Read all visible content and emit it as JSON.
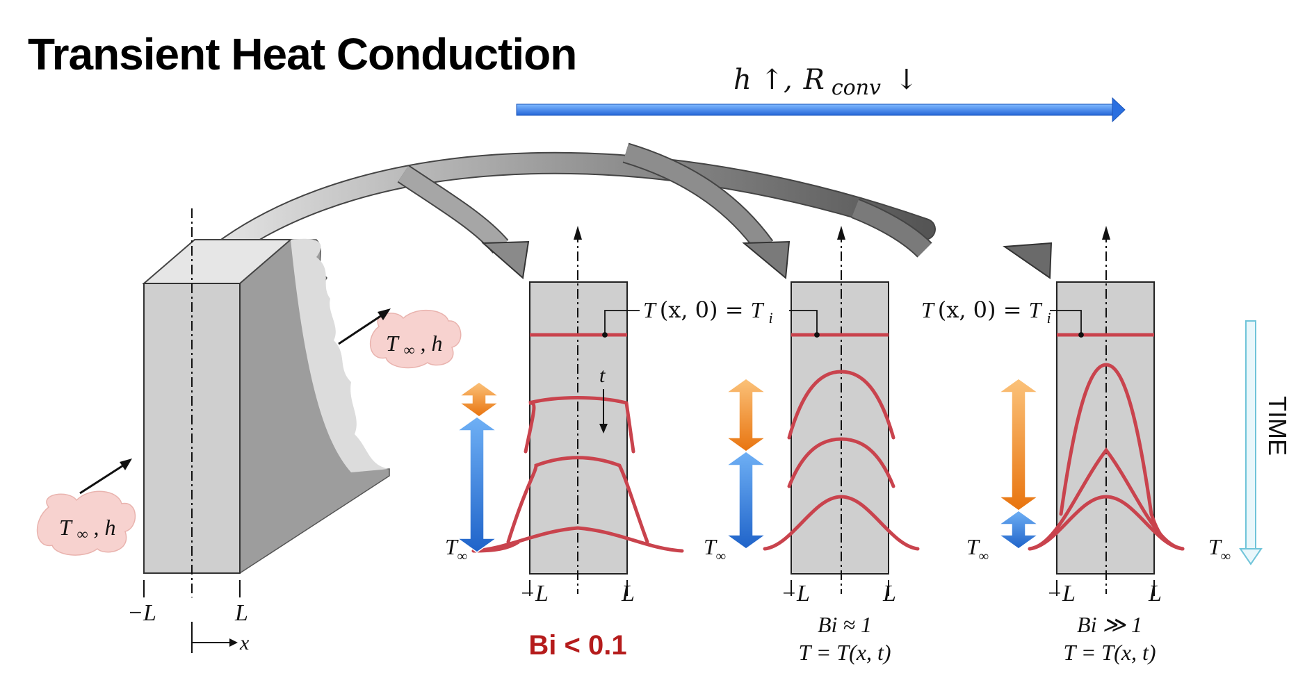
{
  "title": "Transient Heat Conduction",
  "top_arrow": {
    "h_part": "h ↑,",
    "r_main": "R",
    "r_sub": "conv",
    "r_arrow": "↓"
  },
  "slab": {
    "fluid_left": {
      "t": "T",
      "sub": "∞",
      "h": ", h"
    },
    "fluid_right": {
      "t": "T",
      "sub": "∞",
      "h": ", h"
    },
    "minus_l": "−L",
    "plus_l": "L",
    "x_axis": "x"
  },
  "initial_condition": {
    "t": "T",
    "mid": "(x, 0) = ",
    "ti": "T",
    "sub": "i"
  },
  "t_inf": {
    "t": "T",
    "sub": "∞"
  },
  "time_symbol": "t",
  "panels": [
    {
      "name": "bi-small",
      "minus_l": "−L",
      "plus_l": "L",
      "bi_label": "Bi < 0.1",
      "eq": ""
    },
    {
      "name": "bi-one",
      "minus_l": "−L",
      "plus_l": "L",
      "bi_label": "Bi ≈ 1",
      "eq": "T = T(x, t)"
    },
    {
      "name": "bi-large",
      "minus_l": "−L",
      "plus_l": "L",
      "bi_label": "Bi ≫ 1",
      "eq": "T = T(x, t)"
    }
  ],
  "time_label": "TIME",
  "colors": {
    "profile_red": "#c9434d",
    "slab_gray": "#cfcfcf",
    "blue_arrow": "#2e7bd8",
    "orange_arrow": "#f08a24",
    "time_arrow": "#6fc4d9",
    "bubble_fill": "#f7d2cf",
    "bi_red": "#b51c1c"
  }
}
